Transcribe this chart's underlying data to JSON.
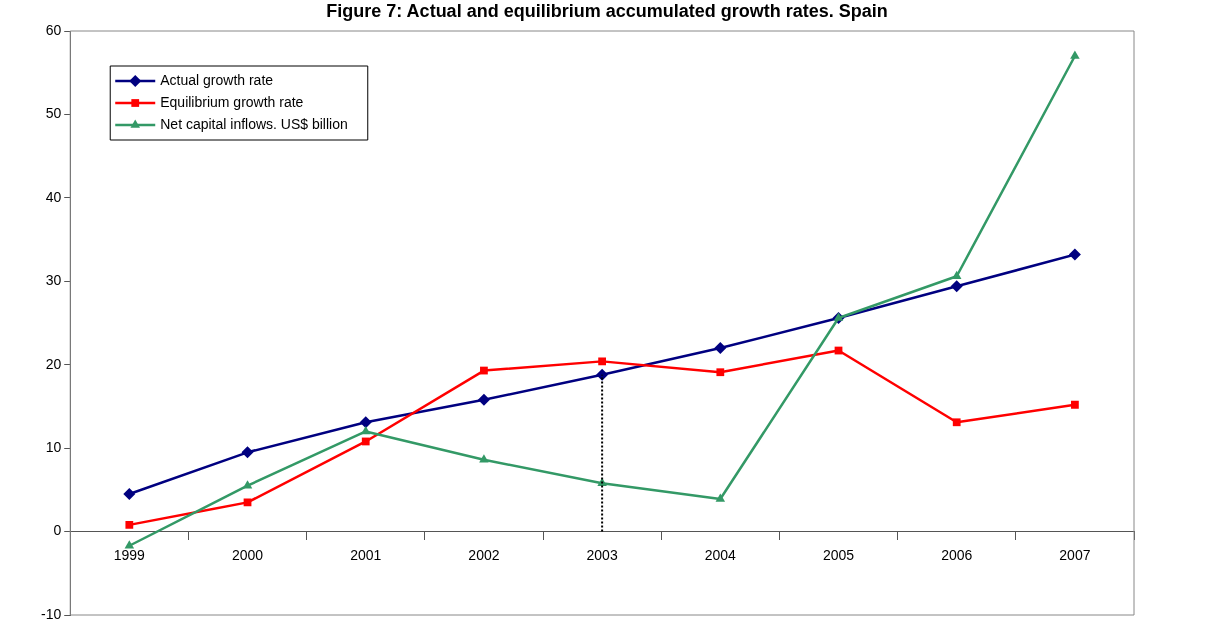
{
  "chart_data": {
    "type": "line",
    "title": "Figure 7: Actual and equilibrium accumulated growth rates. Spain",
    "categories": [
      "1999",
      "2000",
      "2001",
      "2002",
      "2003",
      "2004",
      "2005",
      "2006",
      "2007"
    ],
    "series": [
      {
        "name": "Actual growth rate",
        "color": "#000080",
        "marker": "diamond",
        "values": [
          4.5,
          9.5,
          13.1,
          15.8,
          18.8,
          22.0,
          25.6,
          29.4,
          33.2
        ]
      },
      {
        "name": "Equilibrium growth rate",
        "color": "#ff0000",
        "marker": "square",
        "values": [
          0.8,
          3.5,
          10.8,
          19.3,
          20.4,
          19.1,
          21.7,
          13.1,
          15.2
        ]
      },
      {
        "name": "Net capital inflows. US$ billion",
        "color": "#339966",
        "marker": "triangle",
        "values": [
          -1.7,
          5.5,
          12.0,
          8.6,
          5.8,
          3.9,
          25.6,
          30.6,
          57.0
        ]
      }
    ],
    "ylim": [
      -10,
      60
    ],
    "yticks": [
      -10,
      0,
      10,
      20,
      30,
      40,
      50,
      60
    ],
    "grid": false,
    "legend": "top left",
    "ref_lines": [
      {
        "axis": "x",
        "value": "2003",
        "color": "#000000",
        "line_style": "dotted"
      }
    ]
  }
}
